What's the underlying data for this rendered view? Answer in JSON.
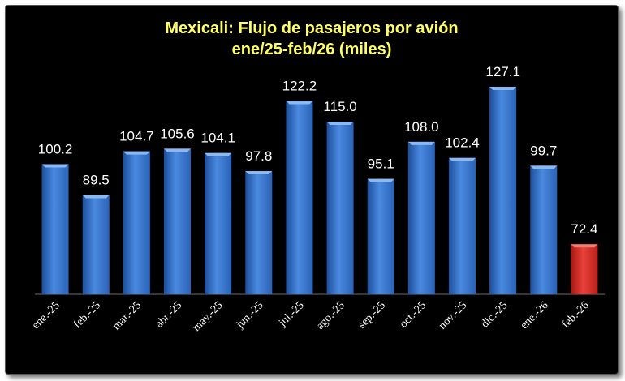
{
  "chart_data": {
    "type": "bar",
    "title": "Mexicali: Flujo de pasajeros por avión",
    "subtitle": "ene/25-feb/26 (miles)",
    "categories": [
      "ene.-25",
      "feb.-25",
      "mar.-25",
      "abr.-25",
      "may.-25",
      "jun.-25",
      "jul.-25",
      "ago.-25",
      "sep.-25",
      "oct.-25",
      "nov.-25",
      "dic.-25",
      "ene.-26",
      "feb.-26"
    ],
    "values": [
      100.2,
      89.5,
      104.7,
      105.6,
      104.1,
      97.8,
      122.2,
      115.0,
      95.1,
      108.0,
      102.4,
      127.1,
      99.7,
      72.4
    ],
    "value_labels": [
      "100.2",
      "89.5",
      "104.7",
      "105.6",
      "104.1",
      "97.8",
      "122.2",
      "115.0",
      "95.1",
      "108.0",
      "102.4",
      "127.1",
      "99.7",
      "72.4"
    ],
    "ylim": [
      55,
      135
    ],
    "grid": false,
    "legend": "none",
    "colors": {
      "background": "#000000",
      "bar": "#3a78d0",
      "highlight_bar": "#d42a22",
      "title": "#ffff66",
      "labels": "#ffffff"
    },
    "highlight_index": 13
  }
}
